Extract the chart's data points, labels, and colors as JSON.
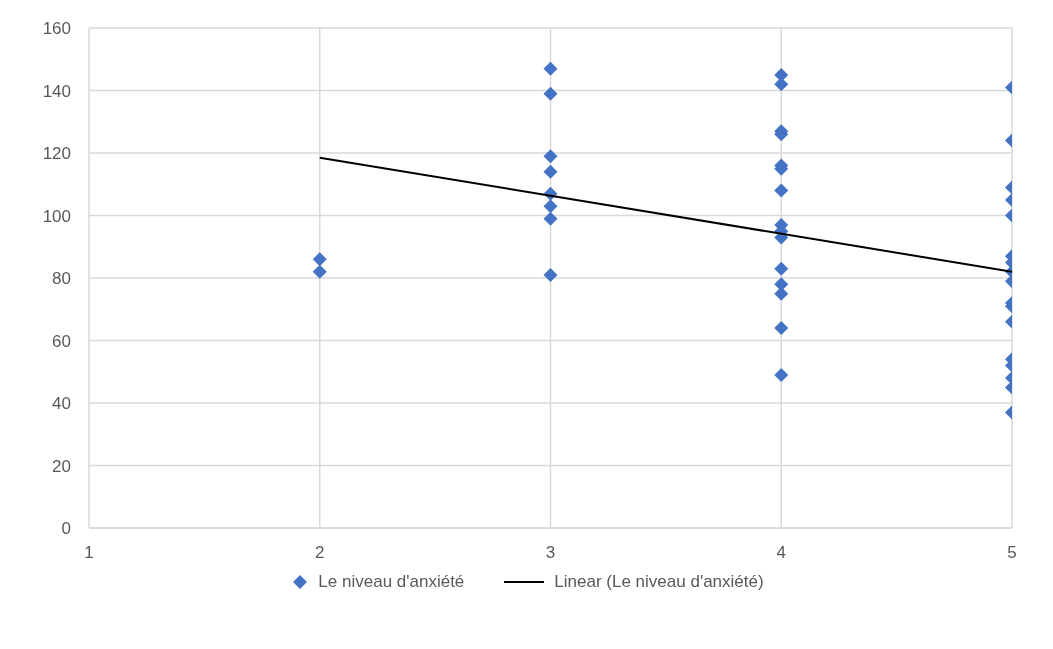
{
  "chart_data": {
    "type": "scatter",
    "xlim": [
      1,
      5
    ],
    "xticks": [
      1,
      2,
      3,
      4,
      5
    ],
    "ylim": [
      0,
      160
    ],
    "yticks": [
      0,
      20,
      40,
      60,
      80,
      100,
      120,
      140,
      160
    ],
    "grid": true,
    "legend": "bottom",
    "series": [
      {
        "name": "Le niveau d'anxiété",
        "marker": "diamond",
        "color": "#4472c4",
        "x": [
          2,
          2,
          3,
          3,
          3,
          3,
          3,
          3,
          3,
          3,
          4,
          4,
          4,
          4,
          4,
          4,
          4,
          4,
          4,
          4,
          4,
          4,
          4,
          4,
          4,
          5,
          5,
          5,
          5,
          5,
          5,
          5,
          5,
          5,
          5,
          5,
          5,
          5,
          5,
          5,
          5,
          5
        ],
        "values": [
          86,
          82,
          147,
          139,
          119,
          114,
          107,
          103,
          99,
          81,
          145,
          142,
          127,
          126,
          116,
          115,
          108,
          97,
          95,
          93,
          83,
          78,
          75,
          64,
          49,
          141,
          124,
          109,
          105,
          100,
          87,
          85,
          82,
          79,
          72,
          71,
          66,
          54,
          52,
          48,
          45,
          37
        ]
      },
      {
        "name": "Linear (Le niveau d'anxiété)",
        "type": "line",
        "marker": "none",
        "color": "#000000",
        "x": [
          2,
          5
        ],
        "values": [
          118.5,
          82
        ]
      }
    ]
  }
}
